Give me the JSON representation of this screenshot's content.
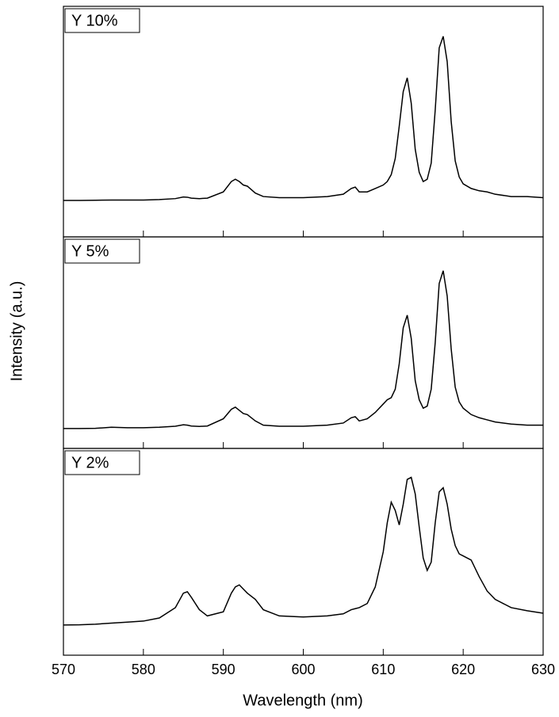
{
  "chart_data": {
    "type": "line",
    "xlabel": "Wavelength (nm)",
    "ylabel": "Intensity (a.u.)",
    "xlim": [
      570,
      630
    ],
    "xticks": [
      570,
      580,
      590,
      600,
      610,
      620,
      630
    ],
    "ylim": [
      0,
      100
    ],
    "color": "#000000",
    "x": [
      570,
      572,
      574,
      576,
      578,
      580,
      582,
      584,
      585,
      585.5,
      586,
      587,
      588,
      590,
      591,
      591.5,
      592,
      592.5,
      593,
      594,
      595,
      597,
      600,
      603,
      605,
      606,
      606.5,
      607,
      608,
      609,
      610,
      610.5,
      611,
      611.5,
      612,
      612.5,
      613,
      613.5,
      614,
      614.5,
      615,
      615.5,
      616,
      616.5,
      617,
      617.5,
      618,
      618.5,
      619,
      619.5,
      620,
      621,
      622,
      623,
      624,
      626,
      628,
      630
    ],
    "series": [
      {
        "name": "Y 10%",
        "values": [
          15.8,
          15.8,
          15.9,
          16,
          16,
          16,
          16.2,
          16.6,
          17.3,
          17.2,
          16.8,
          16.6,
          16.8,
          19.5,
          24,
          25,
          24,
          22.5,
          22,
          19,
          17.5,
          17,
          17,
          17.5,
          18.5,
          21,
          21.6,
          19.5,
          19.5,
          21,
          22.5,
          24,
          27,
          34,
          48,
          63,
          69,
          58,
          38,
          28,
          24,
          25,
          32,
          55,
          82,
          87,
          76,
          50,
          33,
          26,
          23,
          21,
          20,
          19.5,
          18.5,
          17.5,
          17.5,
          17
        ]
      },
      {
        "name": "Y 5%",
        "values": [
          9.4,
          9.4,
          9.5,
          10,
          9.8,
          9.8,
          10,
          10.5,
          11.2,
          11,
          10.6,
          10.4,
          10.6,
          14,
          18.5,
          19.5,
          18,
          16.5,
          16,
          13,
          11,
          10.5,
          10.5,
          11,
          12,
          14.5,
          15,
          13,
          14,
          17,
          21,
          23,
          24,
          28,
          40,
          57,
          63,
          52,
          32,
          23,
          19,
          20,
          28,
          50,
          78,
          84,
          72,
          47,
          29,
          22,
          19,
          16,
          14.5,
          13.5,
          12.5,
          11.5,
          11,
          11
        ]
      },
      {
        "name": "Y 2%",
        "values": [
          14.6,
          14.7,
          15,
          15.5,
          16,
          16.5,
          18,
          23,
          30,
          30.7,
          28,
          22,
          19,
          21,
          30,
          33,
          34,
          32,
          30,
          27,
          22,
          19,
          18.5,
          19,
          20,
          22,
          22.5,
          23,
          25,
          33,
          50,
          64,
          74,
          70,
          63,
          73,
          85,
          86,
          78,
          62,
          47,
          41,
          45,
          64,
          79,
          81,
          73,
          61,
          53,
          49,
          48,
          46,
          38,
          31,
          27,
          23,
          21.5,
          20.3
        ]
      }
    ]
  }
}
